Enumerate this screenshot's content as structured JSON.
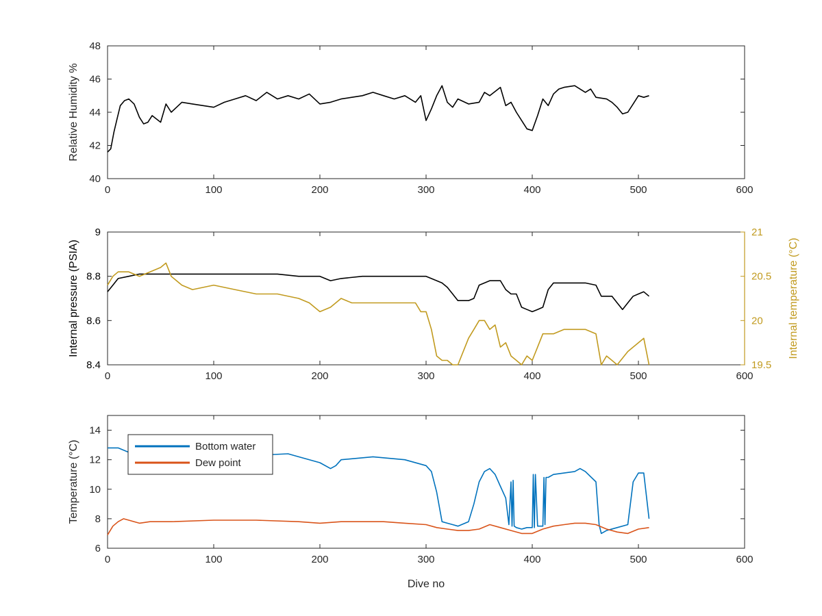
{
  "figure": {
    "xlabel": "Dive no"
  },
  "colors": {
    "axis": "#262626",
    "black_series": "#000000",
    "orange_axis": "#C19A1E",
    "blue": "#0072BD",
    "red": "#D95319"
  },
  "chart_data": [
    {
      "type": "line",
      "ylabel": "Relative Humidity %",
      "xlim": [
        0,
        600
      ],
      "ylim": [
        40,
        48
      ],
      "xticks": [
        0,
        100,
        200,
        300,
        400,
        500,
        600
      ],
      "yticks": [
        40,
        42,
        44,
        46,
        48
      ],
      "series": [
        {
          "color": "#000000",
          "x": [
            0,
            3,
            6,
            9,
            12,
            16,
            20,
            25,
            30,
            34,
            38,
            42,
            46,
            50,
            55,
            60,
            65,
            70,
            80,
            90,
            100,
            110,
            120,
            130,
            140,
            150,
            160,
            170,
            180,
            190,
            200,
            210,
            220,
            230,
            240,
            250,
            260,
            270,
            280,
            290,
            295,
            300,
            305,
            310,
            315,
            320,
            325,
            330,
            340,
            350,
            355,
            360,
            370,
            375,
            380,
            385,
            390,
            395,
            400,
            405,
            410,
            415,
            420,
            425,
            430,
            440,
            450,
            455,
            460,
            470,
            475,
            480,
            485,
            490,
            495,
            500,
            505,
            510
          ],
          "y": [
            41.6,
            41.8,
            42.8,
            43.6,
            44.4,
            44.7,
            44.8,
            44.5,
            43.7,
            43.3,
            43.4,
            43.8,
            43.6,
            43.4,
            44.5,
            44.0,
            44.3,
            44.6,
            44.5,
            44.4,
            44.3,
            44.6,
            44.8,
            45.0,
            44.7,
            45.2,
            44.8,
            45.0,
            44.8,
            45.1,
            44.5,
            44.6,
            44.8,
            44.9,
            45.0,
            45.2,
            45.0,
            44.8,
            45.0,
            44.6,
            45.0,
            43.5,
            44.2,
            45.0,
            45.6,
            44.6,
            44.3,
            44.8,
            44.5,
            44.6,
            45.2,
            45.0,
            45.5,
            44.4,
            44.6,
            44.0,
            43.5,
            43.0,
            42.9,
            43.8,
            44.8,
            44.4,
            45.1,
            45.4,
            45.5,
            45.6,
            45.2,
            45.4,
            44.9,
            44.8,
            44.6,
            44.3,
            43.9,
            44.0,
            44.5,
            45.0,
            44.9,
            45.0
          ]
        }
      ]
    },
    {
      "type": "line",
      "ylabel": "Internal pressure (PSIA)",
      "y2label": "Internal temperature (°C)",
      "xlim": [
        0,
        600
      ],
      "ylim": [
        8.4,
        9
      ],
      "y2lim": [
        19.5,
        21
      ],
      "xticks": [
        0,
        100,
        200,
        300,
        400,
        500,
        600
      ],
      "yticks": [
        8.4,
        8.6,
        8.8,
        9
      ],
      "y2ticks": [
        19.5,
        20,
        20.5,
        21
      ],
      "series": [
        {
          "axis": "left",
          "color": "#000000",
          "x": [
            0,
            5,
            10,
            20,
            30,
            40,
            50,
            60,
            80,
            100,
            120,
            140,
            160,
            180,
            200,
            210,
            220,
            240,
            260,
            280,
            300,
            310,
            315,
            320,
            325,
            330,
            340,
            345,
            350,
            360,
            370,
            375,
            380,
            385,
            390,
            395,
            400,
            405,
            410,
            415,
            420,
            425,
            430,
            440,
            450,
            460,
            465,
            470,
            475,
            480,
            485,
            490,
            495,
            500,
            505,
            510
          ],
          "y": [
            8.73,
            8.76,
            8.79,
            8.8,
            8.81,
            8.81,
            8.81,
            8.81,
            8.81,
            8.81,
            8.81,
            8.81,
            8.81,
            8.8,
            8.8,
            8.78,
            8.79,
            8.8,
            8.8,
            8.8,
            8.8,
            8.78,
            8.77,
            8.75,
            8.72,
            8.69,
            8.69,
            8.7,
            8.76,
            8.78,
            8.78,
            8.74,
            8.72,
            8.72,
            8.66,
            8.65,
            8.64,
            8.65,
            8.66,
            8.74,
            8.77,
            8.77,
            8.77,
            8.77,
            8.77,
            8.76,
            8.71,
            8.71,
            8.71,
            8.68,
            8.65,
            8.68,
            8.71,
            8.72,
            8.73,
            8.71
          ]
        },
        {
          "axis": "right",
          "color": "#C19A1E",
          "x": [
            0,
            5,
            10,
            20,
            30,
            40,
            50,
            55,
            60,
            70,
            80,
            100,
            120,
            140,
            160,
            180,
            190,
            200,
            210,
            220,
            230,
            240,
            250,
            260,
            270,
            280,
            290,
            295,
            300,
            305,
            310,
            315,
            320,
            325,
            330,
            340,
            345,
            350,
            355,
            360,
            365,
            370,
            375,
            380,
            385,
            390,
            395,
            400,
            405,
            410,
            420,
            430,
            440,
            450,
            460,
            465,
            470,
            475,
            480,
            490,
            500,
            505,
            510
          ],
          "y": [
            20.4,
            20.5,
            20.55,
            20.55,
            20.5,
            20.55,
            20.6,
            20.65,
            20.5,
            20.4,
            20.35,
            20.4,
            20.35,
            20.3,
            20.3,
            20.25,
            20.2,
            20.1,
            20.15,
            20.25,
            20.2,
            20.2,
            20.2,
            20.2,
            20.2,
            20.2,
            20.2,
            20.1,
            20.1,
            19.9,
            19.6,
            19.55,
            19.55,
            19.5,
            19.5,
            19.8,
            19.9,
            20.0,
            20.0,
            19.9,
            19.95,
            19.7,
            19.75,
            19.6,
            19.55,
            19.5,
            19.6,
            19.55,
            19.7,
            19.85,
            19.85,
            19.9,
            19.9,
            19.9,
            19.85,
            19.5,
            19.6,
            19.55,
            19.5,
            19.65,
            19.75,
            19.8,
            19.5
          ]
        }
      ]
    },
    {
      "type": "line",
      "ylabel": "Temperature (°C)",
      "xlabel": "Dive no",
      "xlim": [
        0,
        600
      ],
      "ylim": [
        6,
        15
      ],
      "xticks": [
        0,
        100,
        200,
        300,
        400,
        500,
        600
      ],
      "yticks": [
        6,
        8,
        10,
        12,
        14
      ],
      "legend": "top-left",
      "series": [
        {
          "name": "Bottom water",
          "color": "#0072BD",
          "x": [
            0,
            10,
            20,
            30,
            60,
            100,
            140,
            170,
            180,
            200,
            210,
            215,
            220,
            250,
            280,
            300,
            305,
            310,
            315,
            320,
            325,
            330,
            340,
            345,
            350,
            355,
            360,
            365,
            370,
            375,
            378,
            380,
            381,
            382,
            383,
            385,
            390,
            395,
            400,
            401,
            402,
            403,
            405,
            410,
            411,
            412,
            413,
            415,
            420,
            430,
            440,
            445,
            450,
            460,
            463,
            465,
            470,
            480,
            490,
            495,
            500,
            505,
            510
          ],
          "y": [
            12.8,
            12.8,
            12.5,
            12.3,
            12.4,
            12.4,
            12.3,
            12.4,
            12.2,
            11.8,
            11.4,
            11.6,
            12.0,
            12.2,
            12.0,
            11.6,
            11.2,
            9.8,
            7.8,
            7.7,
            7.6,
            7.5,
            7.8,
            9.0,
            10.5,
            11.2,
            11.4,
            11.0,
            10.2,
            9.4,
            7.6,
            10.5,
            7.5,
            10.6,
            7.5,
            7.4,
            7.3,
            7.4,
            7.4,
            11.0,
            7.4,
            11.0,
            7.5,
            7.5,
            10.8,
            7.6,
            10.8,
            10.8,
            11.0,
            11.1,
            11.2,
            11.4,
            11.2,
            10.5,
            7.6,
            7.0,
            7.2,
            7.4,
            7.6,
            10.5,
            11.1,
            11.1,
            8.0
          ]
        },
        {
          "name": "Dew point",
          "color": "#D95319",
          "x": [
            0,
            5,
            10,
            15,
            20,
            30,
            40,
            60,
            100,
            140,
            180,
            200,
            220,
            240,
            260,
            280,
            300,
            310,
            320,
            330,
            340,
            350,
            360,
            370,
            380,
            390,
            400,
            410,
            420,
            430,
            440,
            450,
            460,
            470,
            480,
            490,
            500,
            510
          ],
          "y": [
            6.9,
            7.5,
            7.8,
            8.0,
            7.9,
            7.7,
            7.8,
            7.8,
            7.9,
            7.9,
            7.8,
            7.7,
            7.8,
            7.8,
            7.8,
            7.7,
            7.6,
            7.4,
            7.3,
            7.2,
            7.2,
            7.3,
            7.6,
            7.4,
            7.2,
            7.0,
            7.0,
            7.3,
            7.5,
            7.6,
            7.7,
            7.7,
            7.6,
            7.3,
            7.1,
            7.0,
            7.3,
            7.4
          ]
        }
      ]
    }
  ]
}
